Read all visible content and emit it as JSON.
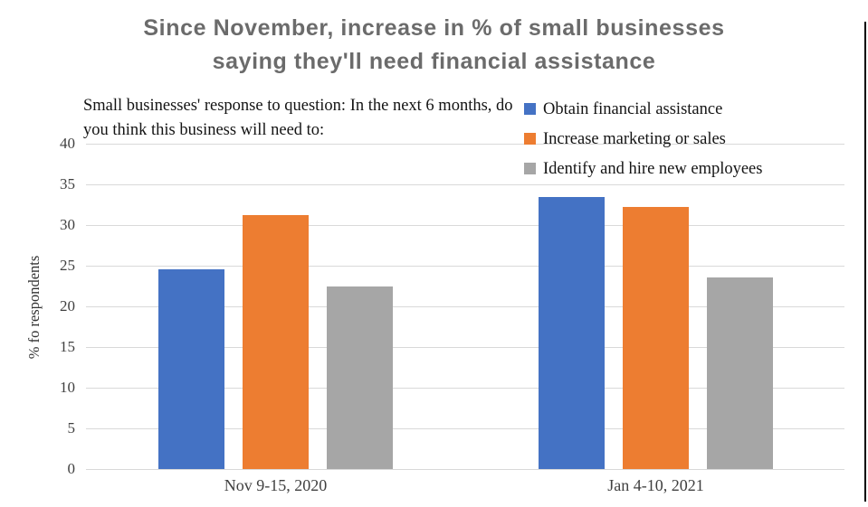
{
  "title": {
    "line1": "Since November, increase in % of small businesses",
    "line2": "saying they'll need financial assistance"
  },
  "subtitle": "Small businesses' response to question: In the next 6 months, do you think this business will need to:",
  "chart_data": {
    "type": "bar",
    "title": "Since November, increase in % of small businesses saying they'll need financial assistance",
    "subtitle": "Small businesses' response to question: In the next 6 months, do you think this business will need to:",
    "categories": [
      "Nov 9-15, 2020",
      "Jan 4-10, 2021"
    ],
    "series": [
      {
        "name": "Obtain financial assistance",
        "color": "#4472C4",
        "values": [
          24.6,
          33.5
        ]
      },
      {
        "name": "Increase marketing or sales",
        "color": "#ED7D31",
        "values": [
          31.2,
          32.2
        ]
      },
      {
        "name": "Identify and hire new employees",
        "color": "#A6A6A6",
        "values": [
          22.4,
          23.6
        ]
      }
    ],
    "ylabel": "% fo respondents",
    "xlabel": "",
    "ylim": [
      0,
      40
    ],
    "yticks": [
      0,
      5,
      10,
      15,
      20,
      25,
      30,
      35,
      40
    ],
    "grid": true,
    "legend_position": "top-right",
    "title_color": "#6b6b6b",
    "gridline_color": "#d9d9d9"
  }
}
